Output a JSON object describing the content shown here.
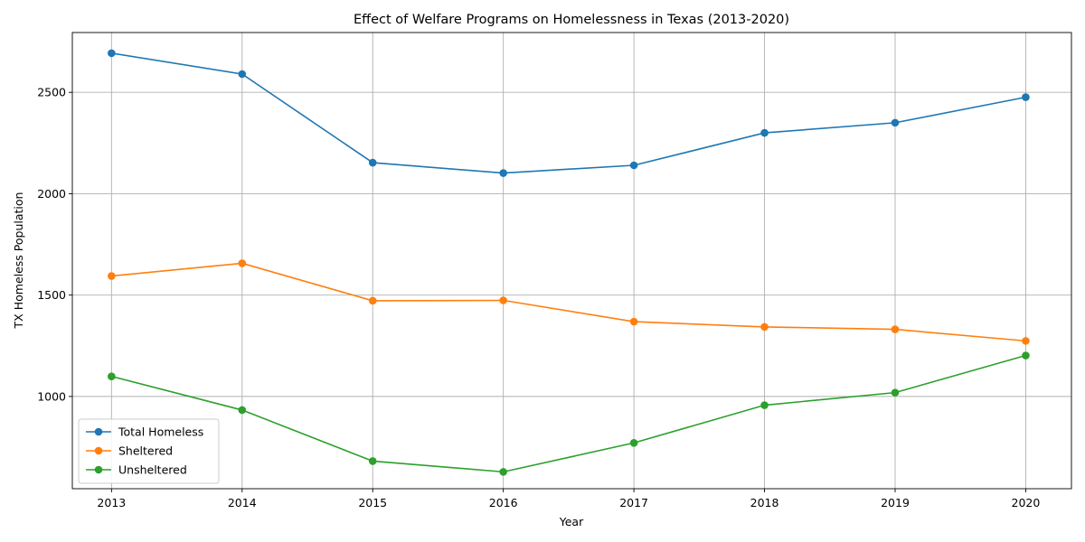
{
  "chart_data": {
    "type": "line",
    "title": "Effect of Welfare Programs on Homelessness in Texas (2013-2020)",
    "xlabel": "Year",
    "ylabel": "TX Homeless Population",
    "x": [
      2013,
      2014,
      2015,
      2016,
      2017,
      2018,
      2019,
      2020
    ],
    "xlim": [
      2012.7,
      2020.35
    ],
    "ylim": [
      545,
      2795
    ],
    "yticks": [
      1000,
      1500,
      2000,
      2500
    ],
    "grid": true,
    "legend": "lower-left",
    "series": [
      {
        "name": "Total Homeless",
        "color": "#1f77b4",
        "values": [
          2693,
          2590,
          2153,
          2102,
          2140,
          2300,
          2350,
          2476
        ]
      },
      {
        "name": "Sheltered",
        "color": "#ff7f0e",
        "values": [
          1594,
          1657,
          1472,
          1474,
          1369,
          1343,
          1331,
          1274
        ]
      },
      {
        "name": "Unsheltered",
        "color": "#2ca02c",
        "values": [
          1099,
          933,
          681,
          628,
          771,
          957,
          1019,
          1202
        ]
      }
    ]
  }
}
